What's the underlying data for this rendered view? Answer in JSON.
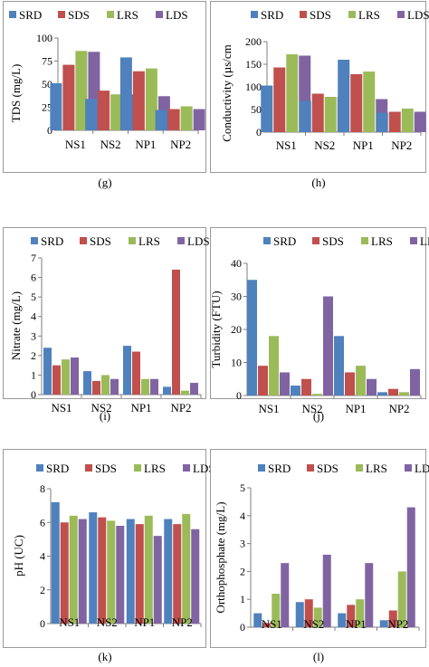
{
  "legend": {
    "series_names": [
      "SRD",
      "SDS",
      "LRS",
      "LDS"
    ],
    "colors": [
      "#4f81bd",
      "#c0504d",
      "#9bbb59",
      "#8064a2"
    ]
  },
  "captions": [
    "(g)",
    "(h)",
    "(i)",
    "(j)",
    "(k)",
    "(l)"
  ],
  "chart_data": [
    {
      "type": "bar",
      "ylabel": "TDS (mg/L)",
      "categories": [
        "NS1",
        "NS2",
        "NP1",
        "NP2"
      ],
      "ylim": [
        0,
        100
      ],
      "yticks": [
        0,
        25,
        50,
        75,
        100
      ],
      "series": [
        {
          "name": "SRD",
          "values": [
            51,
            34,
            79,
            22
          ]
        },
        {
          "name": "SDS",
          "values": [
            71,
            43,
            64,
            23
          ]
        },
        {
          "name": "LRS",
          "values": [
            86,
            39,
            67,
            26
          ]
        },
        {
          "name": "LDS",
          "values": [
            85,
            39,
            37,
            23
          ]
        }
      ]
    },
    {
      "type": "bar",
      "ylabel": "Conductivity (µs/cm",
      "categories": [
        "NS1",
        "NS2",
        "NP1",
        "NP2"
      ],
      "ylim": [
        0,
        200
      ],
      "yticks": [
        0,
        50,
        100,
        150,
        200
      ],
      "series": [
        {
          "name": "SRD",
          "values": [
            103,
            69,
            160,
            43
          ]
        },
        {
          "name": "SDS",
          "values": [
            143,
            85,
            128,
            45
          ]
        },
        {
          "name": "LRS",
          "values": [
            172,
            78,
            134,
            52
          ]
        },
        {
          "name": "LDS",
          "values": [
            169,
            78,
            73,
            45
          ]
        }
      ]
    },
    {
      "type": "bar",
      "ylabel": "Nitrate (mg/L)",
      "categories": [
        "NS1",
        "NS2",
        "NP1",
        "NP2"
      ],
      "ylim": [
        0,
        7
      ],
      "yticks": [
        0,
        1,
        2,
        3,
        4,
        5,
        6,
        7
      ],
      "series": [
        {
          "name": "SRD",
          "values": [
            2.4,
            1.2,
            2.5,
            0.4
          ]
        },
        {
          "name": "SDS",
          "values": [
            1.5,
            0.7,
            2.2,
            6.4
          ]
        },
        {
          "name": "LRS",
          "values": [
            1.8,
            1.0,
            0.8,
            0.2
          ]
        },
        {
          "name": "LDS",
          "values": [
            1.9,
            0.8,
            0.8,
            0.6
          ]
        }
      ]
    },
    {
      "type": "bar",
      "ylabel": "Turbidity (FTU)",
      "categories": [
        "NS1",
        "NS2",
        "NP1",
        "NP2"
      ],
      "ylim": [
        0,
        40
      ],
      "yticks": [
        0,
        10,
        20,
        30,
        40
      ],
      "series": [
        {
          "name": "SRD",
          "values": [
            35,
            3,
            18,
            1
          ]
        },
        {
          "name": "SDS",
          "values": [
            9,
            5,
            7,
            2
          ]
        },
        {
          "name": "LRS",
          "values": [
            18,
            0.5,
            9,
            1
          ]
        },
        {
          "name": "LDS",
          "values": [
            7,
            30,
            5,
            8
          ]
        }
      ]
    },
    {
      "type": "bar",
      "ylabel": "pH (UC)",
      "categories": [
        "NS1",
        "NS2",
        "NP1",
        "NP2"
      ],
      "ylim": [
        0,
        8
      ],
      "yticks": [
        0,
        2,
        4,
        6,
        8
      ],
      "series": [
        {
          "name": "SRD",
          "values": [
            7.2,
            6.6,
            6.2,
            6.2
          ]
        },
        {
          "name": "SDS",
          "values": [
            6.0,
            6.3,
            5.9,
            5.9
          ]
        },
        {
          "name": "LRS",
          "values": [
            6.4,
            6.1,
            6.4,
            6.5
          ]
        },
        {
          "name": "LDS",
          "values": [
            6.2,
            5.8,
            5.2,
            5.6
          ]
        }
      ]
    },
    {
      "type": "bar",
      "ylabel": "Orthophosphate (mg/L)",
      "categories": [
        "NS1",
        "NS2",
        "NP1",
        "NP2"
      ],
      "ylim": [
        0,
        5
      ],
      "yticks": [
        0,
        1,
        2,
        3,
        4,
        5
      ],
      "series": [
        {
          "name": "SRD",
          "values": [
            0.5,
            0.9,
            0.5,
            0.25
          ]
        },
        {
          "name": "SDS",
          "values": [
            0.15,
            1.0,
            0.8,
            0.6
          ]
        },
        {
          "name": "LRS",
          "values": [
            1.2,
            0.7,
            1.0,
            2.0
          ]
        },
        {
          "name": "LDS",
          "values": [
            2.3,
            2.6,
            2.3,
            4.3
          ]
        }
      ]
    }
  ]
}
